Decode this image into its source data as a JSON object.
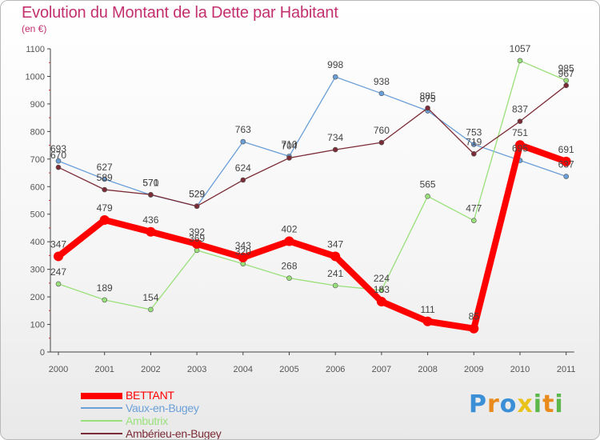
{
  "header": {
    "title": "Evolution du Montant de la Dette par Habitant",
    "subtitle": "(en €)"
  },
  "colors": {
    "title": "#c3306e",
    "bettant": "#ff0000",
    "vaux": "#6a9fd8",
    "ambutrix": "#99e07a",
    "amberieu": "#7b2c36",
    "axis": "#444444",
    "tick_label": "#555555"
  },
  "chart_data": {
    "type": "line",
    "title": "Evolution du Montant de la Dette par Habitant",
    "subtitle": "(en €)",
    "xlabel": "",
    "ylabel": "",
    "x": [
      "2000",
      "2001",
      "2002",
      "2003",
      "2004",
      "2005",
      "2006",
      "2007",
      "2008",
      "2009",
      "2010",
      "2011"
    ],
    "ylim": [
      0,
      1100
    ],
    "yticks": [
      0,
      100,
      200,
      300,
      400,
      500,
      600,
      700,
      800,
      900,
      1000,
      1100
    ],
    "grid": false,
    "legend_position": "bottom-left",
    "series": [
      {
        "name": "BETTANT",
        "color": "#ff0000",
        "values": [
          347,
          479,
          436,
          392,
          343,
          402,
          347,
          183,
          111,
          85,
          751,
          691
        ]
      },
      {
        "name": "Vaux-en-Bugey",
        "color": "#6a9fd8",
        "values": [
          693,
          627,
          570,
          529,
          763,
          710,
          998,
          938,
          875,
          753,
          695,
          637
        ]
      },
      {
        "name": "Ambutrix",
        "color": "#99e07a",
        "values": [
          247,
          189,
          154,
          369,
          320,
          268,
          241,
          224,
          565,
          477,
          1057,
          985
        ]
      },
      {
        "name": "Ambérieu-en-Bugey",
        "color": "#7b2c36",
        "values": [
          670,
          589,
          571,
          529,
          624,
          704,
          734,
          760,
          885,
          719,
          837,
          967
        ]
      }
    ]
  },
  "legend": {
    "items": [
      {
        "label": "BETTANT",
        "color": "#ff0000"
      },
      {
        "label": "Vaux-en-Bugey",
        "color": "#6a9fd8"
      },
      {
        "label": "Ambutrix",
        "color": "#99e07a"
      },
      {
        "label": "Ambérieu-en-Bugey",
        "color": "#7b2c36"
      }
    ]
  },
  "logo": {
    "text": "Proxiti",
    "letters": [
      {
        "ch": "P",
        "color": "#3b8fd6"
      },
      {
        "ch": "r",
        "color": "#e98b1c"
      },
      {
        "ch": "o",
        "color": "#3b8fd6"
      },
      {
        "ch": "x",
        "color": "#e9c31c"
      },
      {
        "ch": "i",
        "color": "#5cb84a"
      },
      {
        "ch": "t",
        "color": "#e98b1c"
      },
      {
        "ch": "i",
        "color": "#5cb84a"
      }
    ]
  }
}
